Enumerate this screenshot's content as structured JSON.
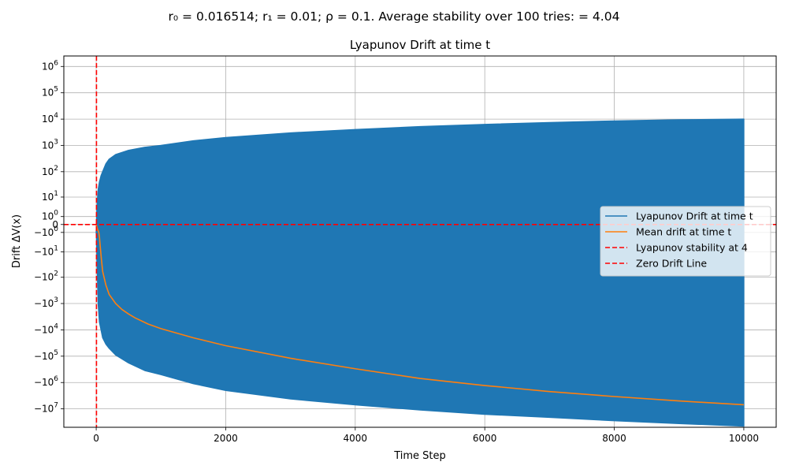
{
  "chart_data": {
    "type": "line",
    "suptitle": "r₀ = 0.016514; r₁ = 0.01; ρ = 0.1. Average stability over 100 tries: = 4.04",
    "title": "Lyapunov Drift at time t",
    "xlabel": "Time Step",
    "ylabel": "Drift ΔV(x)",
    "xlim": [
      -500,
      10500
    ],
    "y_scale": "symlog",
    "y_linthresh": 1,
    "ylim": [
      -50000000,
      2500000
    ],
    "grid": true,
    "legend_location": "center-right",
    "x_ticks": [
      {
        "value": 0,
        "label": "0"
      },
      {
        "value": 2000,
        "label": "2000"
      },
      {
        "value": 4000,
        "label": "4000"
      },
      {
        "value": 6000,
        "label": "6000"
      },
      {
        "value": 8000,
        "label": "8000"
      },
      {
        "value": 10000,
        "label": "10000"
      }
    ],
    "y_ticks": [
      {
        "value": 1000000,
        "base": "10",
        "exp": "6"
      },
      {
        "value": 100000,
        "base": "10",
        "exp": "5"
      },
      {
        "value": 10000,
        "base": "10",
        "exp": "4"
      },
      {
        "value": 1000,
        "base": "10",
        "exp": "3"
      },
      {
        "value": 100,
        "base": "10",
        "exp": "2"
      },
      {
        "value": 10,
        "base": "10",
        "exp": "1"
      },
      {
        "value": 1,
        "base": "10",
        "exp": "0"
      },
      {
        "value": 0,
        "base": "0",
        "exp": ""
      },
      {
        "value": -1,
        "base": "−10",
        "exp": "0"
      },
      {
        "value": -10,
        "base": "−10",
        "exp": "1"
      },
      {
        "value": -100,
        "base": "−10",
        "exp": "2"
      },
      {
        "value": -1000,
        "base": "−10",
        "exp": "3"
      },
      {
        "value": -10000,
        "base": "−10",
        "exp": "4"
      },
      {
        "value": -100000,
        "base": "−10",
        "exp": "5"
      },
      {
        "value": -1000000,
        "base": "−10",
        "exp": "6"
      },
      {
        "value": -10000000,
        "base": "−10",
        "exp": "7"
      }
    ],
    "series": [
      {
        "name": "Lyapunov Drift at time t",
        "color": "#1f77b4",
        "kind": "oscillating-envelope",
        "upper_x": [
          0,
          5,
          10,
          20,
          30,
          50,
          75,
          100,
          150,
          200,
          300,
          500,
          750,
          1000,
          1500,
          2000,
          3000,
          4000,
          5000,
          6000,
          7000,
          8000,
          9000,
          10000
        ],
        "upper_y": [
          -1,
          0,
          2,
          8,
          20,
          40,
          70,
          100,
          200,
          300,
          450,
          650,
          850,
          1000,
          1500,
          2000,
          3000,
          4000,
          5200,
          6300,
          7400,
          8500,
          9400,
          10000
        ],
        "lower_x": [
          0,
          5,
          10,
          20,
          30,
          50,
          75,
          100,
          150,
          200,
          300,
          500,
          750,
          1000,
          1500,
          2000,
          3000,
          4000,
          5000,
          6000,
          7000,
          8000,
          9000,
          10000
        ],
        "lower_y": [
          -1,
          -2,
          -10,
          -100,
          -1000,
          -5000,
          -10000,
          -20000,
          -35000,
          -50000,
          -90000,
          -180000,
          -350000,
          -500000,
          -1100000,
          -2000000,
          -4200000,
          -7000000,
          -11000000,
          -16000000,
          -21000000,
          -28000000,
          -36000000,
          -45000000
        ]
      },
      {
        "name": "Mean drift at time t",
        "color": "#ff7f0e",
        "kind": "line",
        "x": [
          0,
          20,
          40,
          50,
          60,
          70,
          80,
          100,
          150,
          200,
          300,
          400,
          500,
          600,
          800,
          1000,
          1500,
          2000,
          3000,
          4000,
          5000,
          6000,
          7000,
          8000,
          9000,
          10000
        ],
        "y": [
          0,
          -0.5,
          -1,
          -2,
          -5,
          -10,
          -20,
          -60,
          -200,
          -450,
          -1000,
          -1700,
          -2500,
          -3500,
          -6000,
          -9000,
          -20000,
          -40000,
          -120000,
          -300000,
          -700000,
          -1300000,
          -2200000,
          -3400000,
          -5000000,
          -7000000
        ]
      },
      {
        "name": "Lyapunov stability at 4",
        "color": "#ff0000",
        "kind": "vertical-dashed",
        "x": 4
      },
      {
        "name": "Zero Drift Line",
        "color": "#ff0000",
        "kind": "horizontal-dashed",
        "y": 0
      }
    ]
  }
}
